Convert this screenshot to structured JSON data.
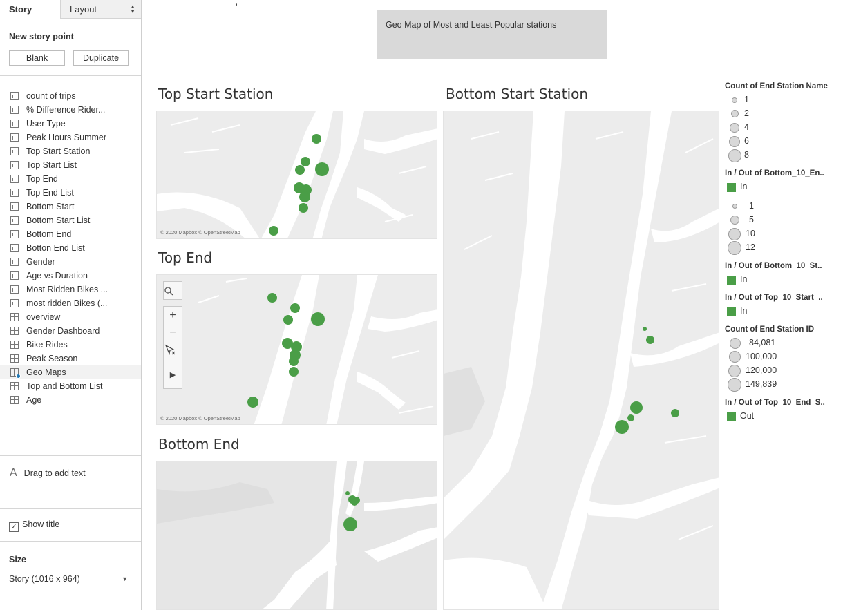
{
  "sidebar": {
    "tabs": {
      "story": "Story",
      "layout": "Layout"
    },
    "new_story_point": "New story point",
    "buttons": {
      "blank": "Blank",
      "duplicate": "Duplicate"
    },
    "sheets": [
      {
        "label": "count of trips",
        "icon": "bar-chart-sheet-icon"
      },
      {
        "label": "% Difference Rider...",
        "icon": "bar-chart-sheet-icon"
      },
      {
        "label": "User Type",
        "icon": "bar-chart-sheet-icon"
      },
      {
        "label": "Peak Hours Summer",
        "icon": "bar-chart-sheet-icon"
      },
      {
        "label": "Top Start Station",
        "icon": "bar-chart-sheet-icon"
      },
      {
        "label": "Top Start List",
        "icon": "bar-chart-sheet-icon"
      },
      {
        "label": "Top End",
        "icon": "bar-chart-sheet-icon"
      },
      {
        "label": "Top End List",
        "icon": "bar-chart-sheet-icon"
      },
      {
        "label": "Bottom Start",
        "icon": "bar-chart-sheet-icon"
      },
      {
        "label": "Bottom Start List",
        "icon": "bar-chart-sheet-icon"
      },
      {
        "label": "Bottom End",
        "icon": "bar-chart-sheet-icon"
      },
      {
        "label": "Botton End List",
        "icon": "bar-chart-sheet-icon"
      },
      {
        "label": "Gender",
        "icon": "bar-chart-sheet-icon"
      },
      {
        "label": "Age vs Duration",
        "icon": "bar-chart-sheet-icon"
      },
      {
        "label": "Most Ridden Bikes ...",
        "icon": "bar-chart-sheet-icon"
      },
      {
        "label": "most ridden Bikes (...",
        "icon": "bar-chart-sheet-icon"
      },
      {
        "label": "overview",
        "icon": "dashboard-icon"
      },
      {
        "label": "Gender Dashboard",
        "icon": "dashboard-icon"
      },
      {
        "label": "Bike Rides",
        "icon": "dashboard-icon"
      },
      {
        "label": "Peak Season",
        "icon": "dashboard-icon"
      },
      {
        "label": "Geo Maps",
        "icon": "dashboard-active-icon",
        "active": true
      },
      {
        "label": "Top and Bottom List",
        "icon": "dashboard-icon"
      },
      {
        "label": "Age",
        "icon": "dashboard-icon"
      }
    ],
    "drag_to_add_text": "Drag to add text",
    "drag_glyph": "A",
    "show_title": "Show title",
    "show_title_checked": "✓",
    "size_label": "Size",
    "size_value": "Story (1016 x 964)"
  },
  "story": {
    "caption": "Geo Map of Most and Least Popular stations"
  },
  "charts": {
    "top_start_title": "Top Start Station",
    "top_end_title": "Top End",
    "bottom_end_title": "Bottom End",
    "bottom_start_title": "Bottom Start Station",
    "attribution": "© 2020 Mapbox © OpenStreetMap"
  },
  "map_controls": {
    "search": "search-icon",
    "zoom_in": "+",
    "zoom_out": "−",
    "select": "select-tool-icon",
    "expand": "▶"
  },
  "legends": {
    "count_end_station_name": {
      "title": "Count of End Station Name",
      "values": [
        "1",
        "2",
        "4",
        "6",
        "8"
      ]
    },
    "in_out_bottom_10_end": {
      "title": "In / Out of Bottom_10_En..",
      "value": "In"
    },
    "size_legend_2": {
      "values": [
        "1",
        "5",
        "10",
        "12"
      ]
    },
    "in_out_bottom_10_start": {
      "title": "In / Out of Bottom_10_St..",
      "value": "In"
    },
    "in_out_top_10_start": {
      "title": "In / Out of Top_10_Start_..",
      "value": "In"
    },
    "count_end_station_id": {
      "title": "Count of End Station ID",
      "values": [
        "84,081",
        "100,000",
        "120,000",
        "149,839"
      ]
    },
    "in_out_top_10_end": {
      "title": "In / Out of Top_10_End_S..",
      "value": "Out"
    }
  },
  "colors": {
    "marker": "#4a9e47",
    "map_land": "#ececec",
    "map_water": "#ffffff"
  }
}
